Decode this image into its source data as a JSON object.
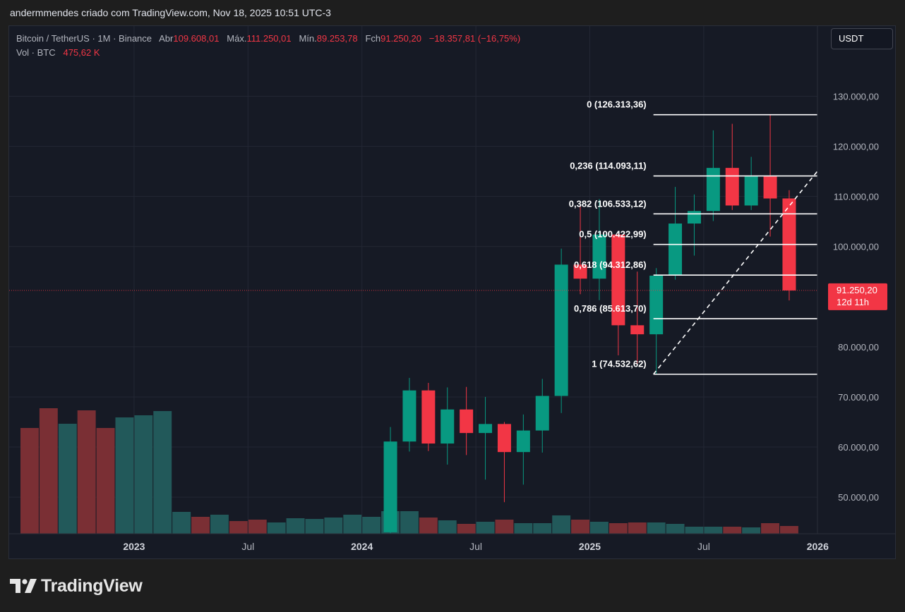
{
  "header": {
    "attribution": "andermmendes criado com TradingView.com, Nov 18, 2025 10:51 UTC-3"
  },
  "legend": {
    "symbol": "Bitcoin / TetherUS",
    "interval": "1M",
    "exchange": "Binance",
    "open_label": "Abr",
    "open_value": "109.608,01",
    "high_label": "Máx.",
    "high_value": "111.250,01",
    "low_label": "Mín.",
    "low_value": "89.253,78",
    "close_label": "Fch",
    "close_value": "91.250,20",
    "change": "−18.357,81 (−16,75%)",
    "vol_label": "Vol · BTC",
    "vol_value": "475,62 K"
  },
  "currency_button": "USDT",
  "logo_text": "TradingView",
  "colors": {
    "up": "#089981",
    "down": "#f23645",
    "vol_up": "#22595a",
    "vol_down": "#7a2f34",
    "background": "#161a25",
    "fib_line": "#ffffff"
  },
  "chart_data": {
    "type": "candlestick",
    "price_axis": {
      "range": [
        42700,
        144000
      ],
      "ticks": [
        50000,
        60000,
        70000,
        80000,
        100000,
        110000,
        120000,
        130000
      ],
      "tick_labels": [
        "50.000,00",
        "60.000,00",
        "70.000,00",
        "80.000,00",
        "100.000,00",
        "110.000,00",
        "120.000,00",
        "130.000,00"
      ]
    },
    "time_axis": {
      "ticks": [
        {
          "date": "2023-01",
          "label": "2023",
          "bold": true
        },
        {
          "date": "2023-07",
          "label": "Jul",
          "bold": false
        },
        {
          "date": "2024-01",
          "label": "2024",
          "bold": true
        },
        {
          "date": "2024-07",
          "label": "Jul",
          "bold": false
        },
        {
          "date": "2025-01",
          "label": "2025",
          "bold": true
        },
        {
          "date": "2025-07",
          "label": "Jul",
          "bold": false
        },
        {
          "date": "2026-01",
          "label": "2026",
          "bold": true
        }
      ]
    },
    "volume_bars": [
      {
        "date": "2022-07",
        "dir": "down",
        "volume": 15000
      },
      {
        "date": "2022-08",
        "dir": "down",
        "volume": 17800
      },
      {
        "date": "2022-09",
        "dir": "up",
        "volume": 15600
      },
      {
        "date": "2022-10",
        "dir": "down",
        "volume": 17500
      },
      {
        "date": "2022-11",
        "dir": "down",
        "volume": 15000
      },
      {
        "date": "2022-12",
        "dir": "up",
        "volume": 16500
      },
      {
        "date": "2023-01",
        "dir": "up",
        "volume": 16800
      },
      {
        "date": "2023-02",
        "dir": "up",
        "volume": 17400
      },
      {
        "date": "2023-03",
        "dir": "up",
        "volume": 3100
      },
      {
        "date": "2023-04",
        "dir": "down",
        "volume": 2400
      },
      {
        "date": "2023-05",
        "dir": "up",
        "volume": 2700
      },
      {
        "date": "2023-06",
        "dir": "down",
        "volume": 1800
      },
      {
        "date": "2023-07",
        "dir": "down",
        "volume": 2000
      },
      {
        "date": "2023-08",
        "dir": "up",
        "volume": 1600
      },
      {
        "date": "2023-09",
        "dir": "up",
        "volume": 2200
      },
      {
        "date": "2023-10",
        "dir": "up",
        "volume": 2100
      },
      {
        "date": "2023-11",
        "dir": "up",
        "volume": 2300
      },
      {
        "date": "2023-12",
        "dir": "up",
        "volume": 2700
      },
      {
        "date": "2024-01",
        "dir": "up",
        "volume": 2400
      },
      {
        "date": "2024-02",
        "dir": "up",
        "volume": 3200
      },
      {
        "date": "2024-03",
        "dir": "up",
        "volume": 3200
      },
      {
        "date": "2024-04",
        "dir": "down",
        "volume": 2300
      },
      {
        "date": "2024-05",
        "dir": "up",
        "volume": 1900
      },
      {
        "date": "2024-06",
        "dir": "down",
        "volume": 1400
      },
      {
        "date": "2024-07",
        "dir": "up",
        "volume": 1700
      },
      {
        "date": "2024-08",
        "dir": "down",
        "volume": 2000
      },
      {
        "date": "2024-09",
        "dir": "up",
        "volume": 1500
      },
      {
        "date": "2024-10",
        "dir": "up",
        "volume": 1500
      },
      {
        "date": "2024-11",
        "dir": "up",
        "volume": 2600
      },
      {
        "date": "2024-12",
        "dir": "down",
        "volume": 2000
      },
      {
        "date": "2025-01",
        "dir": "up",
        "volume": 1700
      },
      {
        "date": "2025-02",
        "dir": "down",
        "volume": 1500
      },
      {
        "date": "2025-03",
        "dir": "down",
        "volume": 1600
      },
      {
        "date": "2025-04",
        "dir": "up",
        "volume": 1600
      },
      {
        "date": "2025-05",
        "dir": "up",
        "volume": 1400
      },
      {
        "date": "2025-06",
        "dir": "up",
        "volume": 1000
      },
      {
        "date": "2025-07",
        "dir": "up",
        "volume": 1000
      },
      {
        "date": "2025-08",
        "dir": "down",
        "volume": 1000
      },
      {
        "date": "2025-09",
        "dir": "up",
        "volume": 900
      },
      {
        "date": "2025-10",
        "dir": "down",
        "volume": 1500
      },
      {
        "date": "2025-11",
        "dir": "down",
        "volume": 1100
      }
    ],
    "candles": [
      {
        "date": "2024-02",
        "open": 43000,
        "high": 64000,
        "low": 42800,
        "close": 61100
      },
      {
        "date": "2024-03",
        "open": 61100,
        "high": 73800,
        "low": 59100,
        "close": 71300
      },
      {
        "date": "2024-04",
        "open": 71300,
        "high": 72800,
        "low": 59200,
        "close": 60700
      },
      {
        "date": "2024-05",
        "open": 60700,
        "high": 71900,
        "low": 56500,
        "close": 67500
      },
      {
        "date": "2024-06",
        "open": 67500,
        "high": 72000,
        "low": 58400,
        "close": 62800
      },
      {
        "date": "2024-07",
        "open": 62800,
        "high": 70000,
        "low": 53500,
        "close": 64600
      },
      {
        "date": "2024-08",
        "open": 64600,
        "high": 65000,
        "low": 49000,
        "close": 59000
      },
      {
        "date": "2024-09",
        "open": 59000,
        "high": 66500,
        "low": 52500,
        "close": 63300
      },
      {
        "date": "2024-10",
        "open": 63300,
        "high": 73600,
        "low": 58900,
        "close": 70200
      },
      {
        "date": "2024-11",
        "open": 70200,
        "high": 99600,
        "low": 66800,
        "close": 96400
      },
      {
        "date": "2024-12",
        "open": 96400,
        "high": 108300,
        "low": 90500,
        "close": 93600
      },
      {
        "date": "2025-01",
        "open": 93600,
        "high": 109500,
        "low": 89300,
        "close": 102400
      },
      {
        "date": "2025-02",
        "open": 102400,
        "high": 102500,
        "low": 78300,
        "close": 84300
      },
      {
        "date": "2025-03",
        "open": 84300,
        "high": 95000,
        "low": 76600,
        "close": 82500
      },
      {
        "date": "2025-04",
        "open": 82500,
        "high": 95700,
        "low": 74500,
        "close": 94200
      },
      {
        "date": "2025-05",
        "open": 94200,
        "high": 111900,
        "low": 93400,
        "close": 104600
      },
      {
        "date": "2025-06",
        "open": 104600,
        "high": 110400,
        "low": 98200,
        "close": 107100
      },
      {
        "date": "2025-07",
        "open": 107100,
        "high": 123200,
        "low": 105100,
        "close": 115700
      },
      {
        "date": "2025-08",
        "open": 115700,
        "high": 124500,
        "low": 107300,
        "close": 108200
      },
      {
        "date": "2025-09",
        "open": 108200,
        "high": 117900,
        "low": 107300,
        "close": 114000
      },
      {
        "date": "2025-10",
        "open": 114000,
        "high": 126300,
        "low": 102000,
        "close": 109600
      },
      {
        "date": "2025-11",
        "open": 109608.01,
        "high": 111250.01,
        "low": 89253.78,
        "close": 91250.2
      }
    ],
    "fibonacci": {
      "levels": [
        {
          "label": "0 (126.313,36)",
          "price": 126313.36
        },
        {
          "label": "0,236 (114.093,11)",
          "price": 114093.11
        },
        {
          "label": "0,382 (106.533,12)",
          "price": 106533.12
        },
        {
          "label": "0,5 (100.422,99)",
          "price": 100422.99
        },
        {
          "label": "0,618 (94.312,86)",
          "price": 94312.86
        },
        {
          "label": "0,786 (85.613,70)",
          "price": 85613.7
        },
        {
          "label": "1 (74.532,62)",
          "price": 74532.62
        }
      ],
      "start": {
        "date": "2025-04",
        "price": 74532.62
      },
      "end": {
        "date": "2026-02",
        "price": 119000
      },
      "extend_to": "2026-01"
    },
    "last_price": {
      "value": 91250.2,
      "label": "91.250,20",
      "countdown": "12d 11h"
    }
  }
}
